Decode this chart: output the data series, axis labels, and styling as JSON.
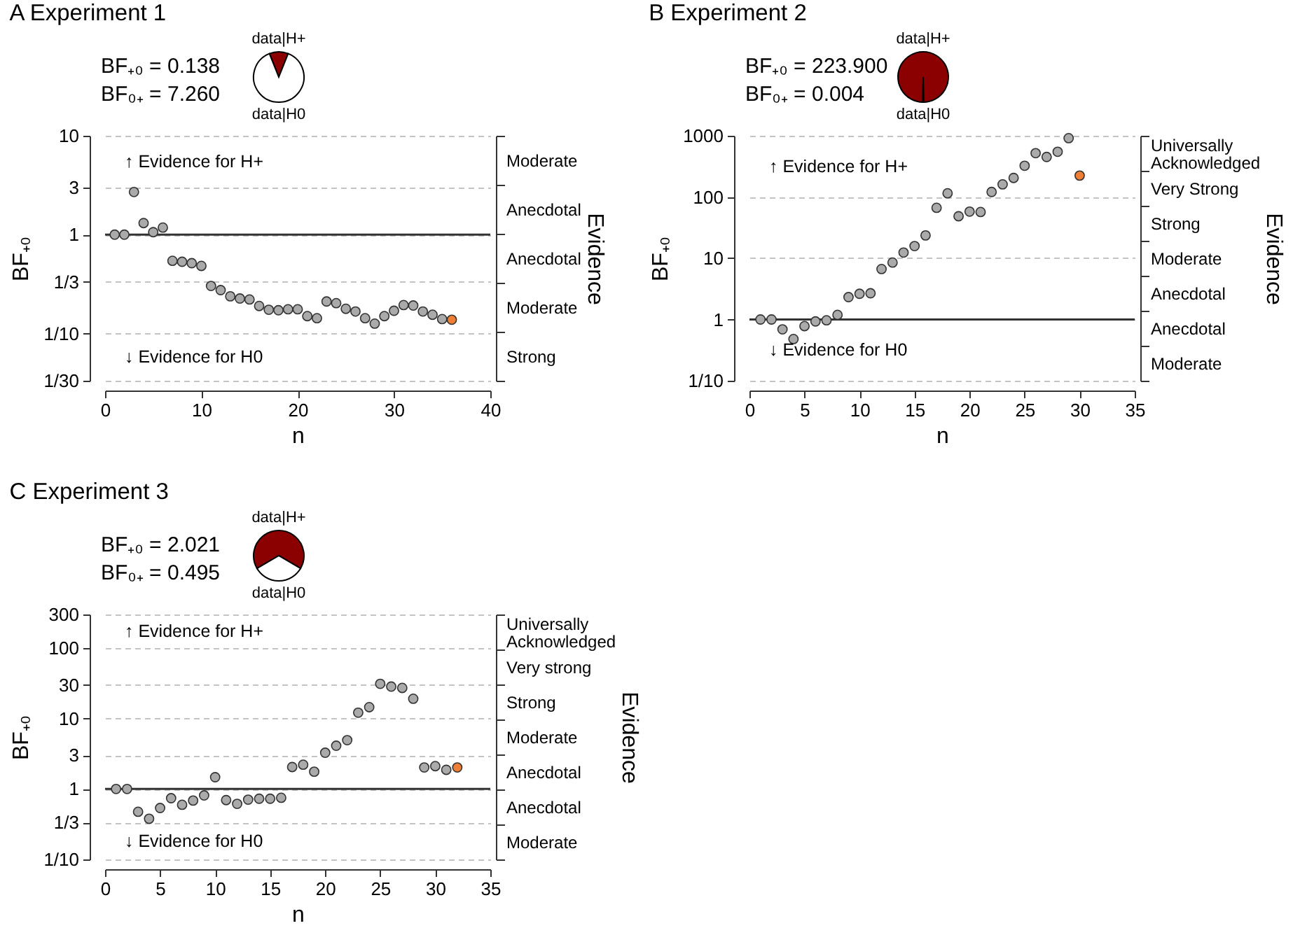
{
  "chart_data": [
    {
      "type": "pie",
      "title": "A Experiment 1",
      "categories": [
        "data|H+",
        "data|H0"
      ],
      "values": [
        12.1,
        87.9
      ],
      "colors": [
        "#8b0000",
        "#ffffff"
      ],
      "annotations": [
        "BF₊₀ = 0.138",
        "BF₀₊ = 7.260"
      ]
    },
    {
      "type": "scatter",
      "xlabel": "n",
      "ylabel": "BF₊₀",
      "y2label": "Evidence",
      "marker": "circle",
      "log": true,
      "grid": "y",
      "series": [
        {
          "color": "#aaaaaa",
          "x": [
            1,
            2,
            3,
            4,
            5,
            6,
            7,
            8,
            9,
            10,
            11,
            12,
            13,
            14,
            15,
            16,
            17,
            18,
            19,
            20,
            21,
            22,
            23,
            24,
            25,
            26,
            27,
            28,
            29,
            30,
            31,
            32,
            33,
            34,
            35
          ],
          "values": [
            1.0,
            1.0,
            2.7,
            1.31,
            1.06,
            1.18,
            0.544,
            0.532,
            0.515,
            0.483,
            0.303,
            0.275,
            0.238,
            0.226,
            0.221,
            0.19,
            0.174,
            0.172,
            0.176,
            0.176,
            0.15,
            0.143,
            0.211,
            0.203,
            0.178,
            0.167,
            0.143,
            0.126,
            0.15,
            0.17,
            0.194,
            0.192,
            0.167,
            0.155,
            0.14
          ]
        },
        {
          "color": "#ee7f35",
          "x": [
            36
          ],
          "values": [
            0.138
          ]
        }
      ],
      "xlim": [
        0,
        40
      ],
      "xticks": [
        0,
        10,
        20,
        30,
        40
      ],
      "ylim": [
        0.033333,
        10
      ],
      "yticks": [
        {
          "value": 0.033333,
          "label": "1/30"
        },
        {
          "value": 0.1,
          "label": "1/10"
        },
        {
          "value": 0.33333,
          "label": "1/3"
        },
        1,
        3,
        10
      ],
      "y2_categories": [
        "Moderate",
        "Anecdotal",
        "Anecdotal",
        "Moderate",
        "Strong"
      ],
      "ref_lines": [
        {
          "axis": "y",
          "value": 1,
          "color": "#333333"
        }
      ],
      "annotations": [
        "↑ Evidence for H+",
        "↓ Evidence for H0"
      ]
    },
    {
      "type": "pie",
      "title": "B Experiment 2",
      "categories": [
        "data|H+",
        "data|H0"
      ],
      "values": [
        99.6,
        0.4
      ],
      "colors": [
        "#8b0000",
        "#ffffff"
      ],
      "annotations": [
        "BF₊₀ = 223.900",
        "BF₀₊ = 0.004"
      ]
    },
    {
      "type": "scatter",
      "xlabel": "n",
      "ylabel": "BF₊₀",
      "y2label": "Evidence",
      "marker": "circle",
      "log": true,
      "grid": "y",
      "series": [
        {
          "color": "#aaaaaa",
          "x": [
            1,
            2,
            3,
            4,
            5,
            6,
            7,
            8,
            9,
            10,
            11,
            12,
            13,
            14,
            15,
            16,
            17,
            18,
            19,
            20,
            21,
            22,
            23,
            24,
            25,
            26,
            27,
            28,
            29
          ],
          "values": [
            1.0,
            1.0,
            0.69,
            0.48,
            0.78,
            0.93,
            0.97,
            1.19,
            2.32,
            2.63,
            2.68,
            6.67,
            8.5,
            12.4,
            15.8,
            23.6,
            66.7,
            115,
            48.5,
            57.8,
            56.9,
            121,
            161,
            205,
            324,
            520,
            451,
            548,
            914
          ]
        },
        {
          "color": "#ee7f35",
          "x": [
            30
          ],
          "values": [
            223.9
          ]
        }
      ],
      "xlim": [
        0,
        35
      ],
      "xticks": [
        0,
        5,
        10,
        15,
        20,
        25,
        30,
        35
      ],
      "ylim": [
        0.1,
        1000
      ],
      "yticks": [
        {
          "value": 0.1,
          "label": "1/10"
        },
        1,
        10,
        100,
        1000
      ],
      "y2_categories": [
        "Universally Acknowledged",
        "Very Strong",
        "Strong",
        "Moderate",
        "Anecdotal",
        "Anecdotal",
        "Moderate"
      ],
      "ref_lines": [
        {
          "axis": "y",
          "value": 1,
          "color": "#333333"
        }
      ],
      "annotations": [
        "↑ Evidence for H+",
        "↓ Evidence for H0"
      ]
    },
    {
      "type": "pie",
      "title": "C Experiment 3",
      "categories": [
        "data|H+",
        "data|H0"
      ],
      "values": [
        66.9,
        33.1
      ],
      "colors": [
        "#8b0000",
        "#ffffff"
      ],
      "annotations": [
        "BF₊₀ = 2.021",
        "BF₀₊ = 0.495"
      ]
    },
    {
      "type": "scatter",
      "xlabel": "n",
      "ylabel": "BF₊₀",
      "y2label": "Evidence",
      "marker": "circle",
      "log": true,
      "grid": "y",
      "series": [
        {
          "color": "#aaaaaa",
          "x": [
            1,
            2,
            3,
            4,
            5,
            6,
            7,
            8,
            9,
            10,
            11,
            12,
            13,
            14,
            15,
            16,
            17,
            18,
            19,
            20,
            21,
            22,
            23,
            24,
            25,
            26,
            27,
            28,
            29,
            30,
            31
          ],
          "values": [
            1.0,
            1.0,
            0.475,
            0.378,
            0.537,
            0.74,
            0.597,
            0.685,
            0.81,
            1.47,
            0.695,
            0.615,
            0.706,
            0.727,
            0.727,
            0.75,
            2.05,
            2.21,
            1.76,
            3.27,
            4.11,
            4.93,
            12.1,
            14.5,
            31.1,
            28.4,
            27.2,
            19.1,
            2.02,
            2.11,
            1.87
          ]
        },
        {
          "color": "#ee7f35",
          "x": [
            32
          ],
          "values": [
            2.021
          ]
        }
      ],
      "xlim": [
        0,
        35
      ],
      "xticks": [
        0,
        5,
        10,
        15,
        20,
        25,
        30,
        35
      ],
      "ylim": [
        0.1,
        300
      ],
      "yticks": [
        {
          "value": 0.1,
          "label": "1/10"
        },
        {
          "value": 0.33333,
          "label": "1/3"
        },
        1,
        3,
        10,
        30,
        100,
        300
      ],
      "y2_categories": [
        "Universally Acknowledged",
        "Very strong",
        "Strong",
        "Moderate",
        "Anecdotal",
        "Anecdotal",
        "Moderate"
      ],
      "ref_lines": [
        {
          "axis": "y",
          "value": 1,
          "color": "#333333"
        }
      ],
      "annotations": [
        "↑ Evidence for H+",
        "↓ Evidence for H0"
      ]
    }
  ]
}
